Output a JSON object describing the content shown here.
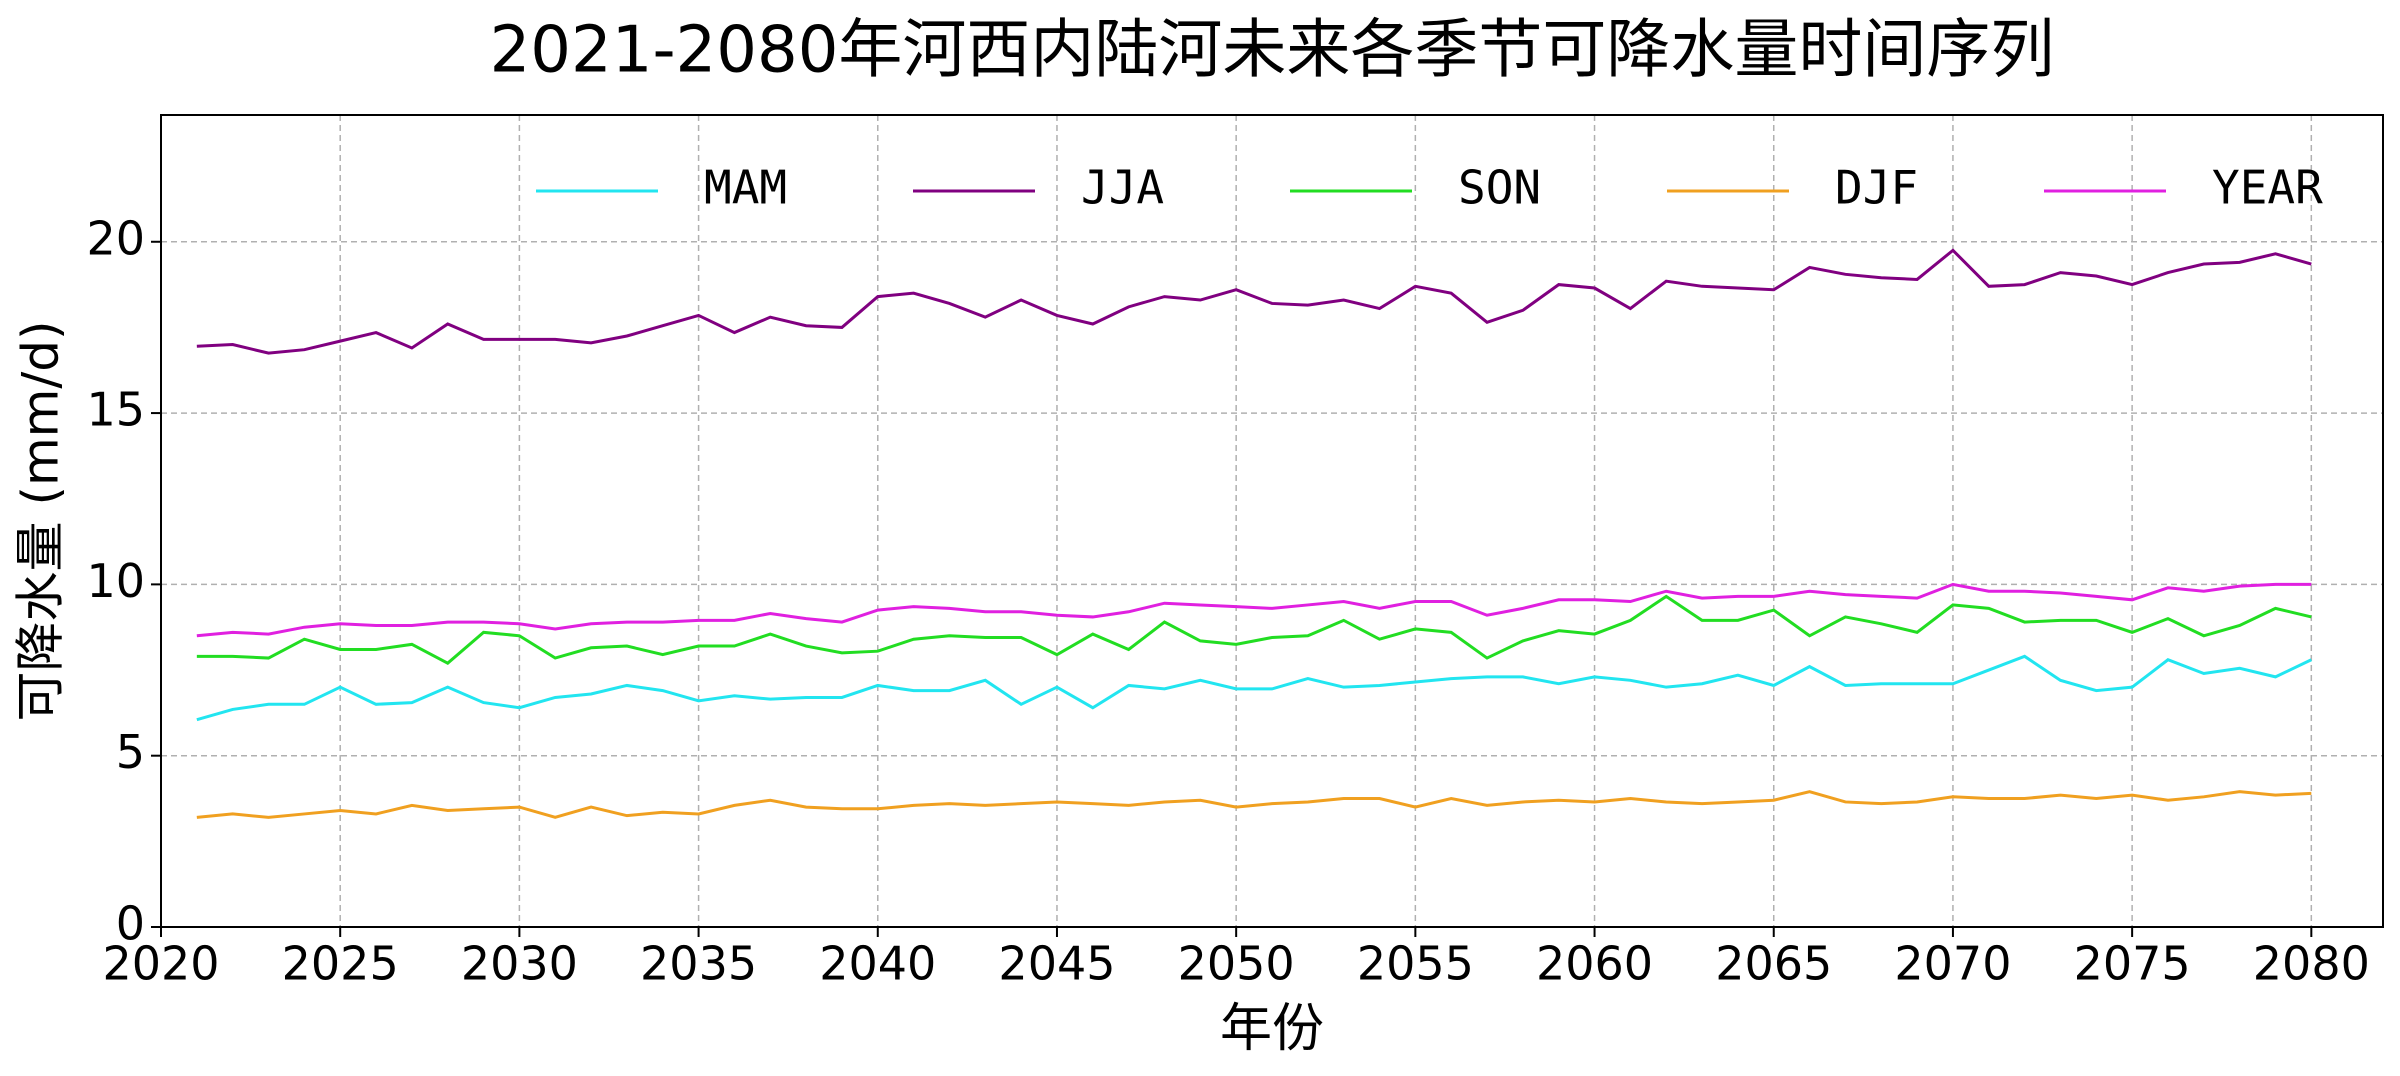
{
  "chart_data": {
    "type": "line",
    "title": "2021-2080年河西内陆河未来各季节可降水量时间序列",
    "x_label": "年份",
    "y_label": "可降水量 (mm/d)",
    "x": [
      2021,
      2022,
      2023,
      2024,
      2025,
      2026,
      2027,
      2028,
      2029,
      2030,
      2031,
      2032,
      2033,
      2034,
      2035,
      2036,
      2037,
      2038,
      2039,
      2040,
      2041,
      2042,
      2043,
      2044,
      2045,
      2046,
      2047,
      2048,
      2049,
      2050,
      2051,
      2052,
      2053,
      2054,
      2055,
      2056,
      2057,
      2058,
      2059,
      2060,
      2061,
      2062,
      2063,
      2064,
      2065,
      2066,
      2067,
      2068,
      2069,
      2070,
      2071,
      2072,
      2073,
      2074,
      2075,
      2076,
      2077,
      2078,
      2079,
      2080
    ],
    "series": [
      {
        "name": "MAM",
        "color": "#22e5f0",
        "values": [
          6.05,
          6.35,
          6.5,
          6.5,
          7.0,
          6.5,
          6.55,
          7.0,
          6.55,
          6.4,
          6.7,
          6.8,
          7.05,
          6.9,
          6.6,
          6.75,
          6.65,
          6.7,
          6.7,
          7.05,
          6.9,
          6.9,
          7.2,
          6.5,
          7.0,
          6.4,
          7.05,
          6.95,
          7.2,
          6.95,
          6.95,
          7.25,
          7.0,
          7.05,
          7.15,
          7.25,
          7.3,
          7.3,
          7.1,
          7.3,
          7.2,
          7.0,
          7.1,
          7.35,
          7.05,
          7.6,
          7.05,
          7.1,
          7.1,
          7.1,
          7.5,
          7.9,
          7.2,
          6.9,
          7.0,
          7.8,
          7.4,
          7.55,
          7.3,
          7.8
        ]
      },
      {
        "name": "JJA",
        "color": "#800080",
        "values": [
          16.95,
          17.0,
          16.75,
          16.85,
          17.1,
          17.35,
          16.9,
          17.6,
          17.15,
          17.15,
          17.15,
          17.05,
          17.25,
          17.55,
          17.85,
          17.35,
          17.8,
          17.55,
          17.5,
          18.4,
          18.5,
          18.2,
          17.8,
          18.3,
          17.85,
          17.6,
          18.1,
          18.4,
          18.3,
          18.6,
          18.2,
          18.15,
          18.3,
          18.05,
          18.7,
          18.5,
          17.65,
          18.0,
          18.75,
          18.65,
          18.05,
          18.85,
          18.7,
          18.65,
          18.6,
          19.25,
          19.05,
          18.95,
          18.9,
          19.75,
          18.7,
          18.75,
          19.1,
          19.0,
          18.75,
          19.1,
          19.35,
          19.4,
          19.65,
          19.35
        ]
      },
      {
        "name": "SON",
        "color": "#22dd22",
        "values": [
          7.9,
          7.9,
          7.85,
          8.4,
          8.1,
          8.1,
          8.25,
          7.7,
          8.6,
          8.5,
          7.85,
          8.15,
          8.2,
          7.95,
          8.2,
          8.2,
          8.55,
          8.2,
          8.0,
          8.05,
          8.4,
          8.5,
          8.45,
          8.45,
          7.95,
          8.55,
          8.1,
          8.9,
          8.35,
          8.25,
          8.45,
          8.5,
          8.95,
          8.4,
          8.7,
          8.6,
          7.85,
          8.35,
          8.65,
          8.55,
          8.95,
          9.65,
          8.95,
          8.95,
          9.25,
          8.5,
          9.05,
          8.85,
          8.6,
          9.4,
          9.3,
          8.9,
          8.95,
          8.95,
          8.6,
          9.0,
          8.5,
          8.8,
          9.3,
          9.05
        ]
      },
      {
        "name": "DJF",
        "color": "#f0a020",
        "values": [
          3.2,
          3.3,
          3.2,
          3.3,
          3.4,
          3.3,
          3.55,
          3.4,
          3.45,
          3.5,
          3.2,
          3.5,
          3.25,
          3.35,
          3.3,
          3.55,
          3.7,
          3.5,
          3.45,
          3.45,
          3.55,
          3.6,
          3.55,
          3.6,
          3.65,
          3.6,
          3.55,
          3.65,
          3.7,
          3.5,
          3.6,
          3.65,
          3.75,
          3.75,
          3.5,
          3.75,
          3.55,
          3.65,
          3.7,
          3.65,
          3.75,
          3.65,
          3.6,
          3.65,
          3.7,
          3.95,
          3.65,
          3.6,
          3.65,
          3.8,
          3.75,
          3.75,
          3.85,
          3.75,
          3.85,
          3.7,
          3.8,
          3.95,
          3.85,
          3.9
        ]
      },
      {
        "name": "YEAR",
        "color": "#e020e0",
        "values": [
          8.5,
          8.6,
          8.55,
          8.75,
          8.85,
          8.8,
          8.8,
          8.9,
          8.9,
          8.85,
          8.7,
          8.85,
          8.9,
          8.9,
          8.95,
          8.95,
          9.15,
          9.0,
          8.9,
          9.25,
          9.35,
          9.3,
          9.2,
          9.2,
          9.1,
          9.05,
          9.2,
          9.45,
          9.4,
          9.35,
          9.3,
          9.4,
          9.5,
          9.3,
          9.5,
          9.5,
          9.1,
          9.3,
          9.55,
          9.55,
          9.5,
          9.8,
          9.6,
          9.65,
          9.65,
          9.8,
          9.7,
          9.65,
          9.6,
          10.0,
          9.8,
          9.8,
          9.75,
          9.65,
          9.55,
          9.9,
          9.8,
          9.95,
          10.0,
          10.0
        ]
      }
    ],
    "xlim": [
      2020,
      2082
    ],
    "ylim": [
      0,
      23.7
    ],
    "xticks": [
      2020,
      2025,
      2030,
      2035,
      2040,
      2045,
      2050,
      2055,
      2060,
      2065,
      2070,
      2075,
      2080
    ],
    "yticks": [
      0,
      5,
      10,
      15,
      20
    ],
    "grid": true,
    "legend": "top"
  }
}
